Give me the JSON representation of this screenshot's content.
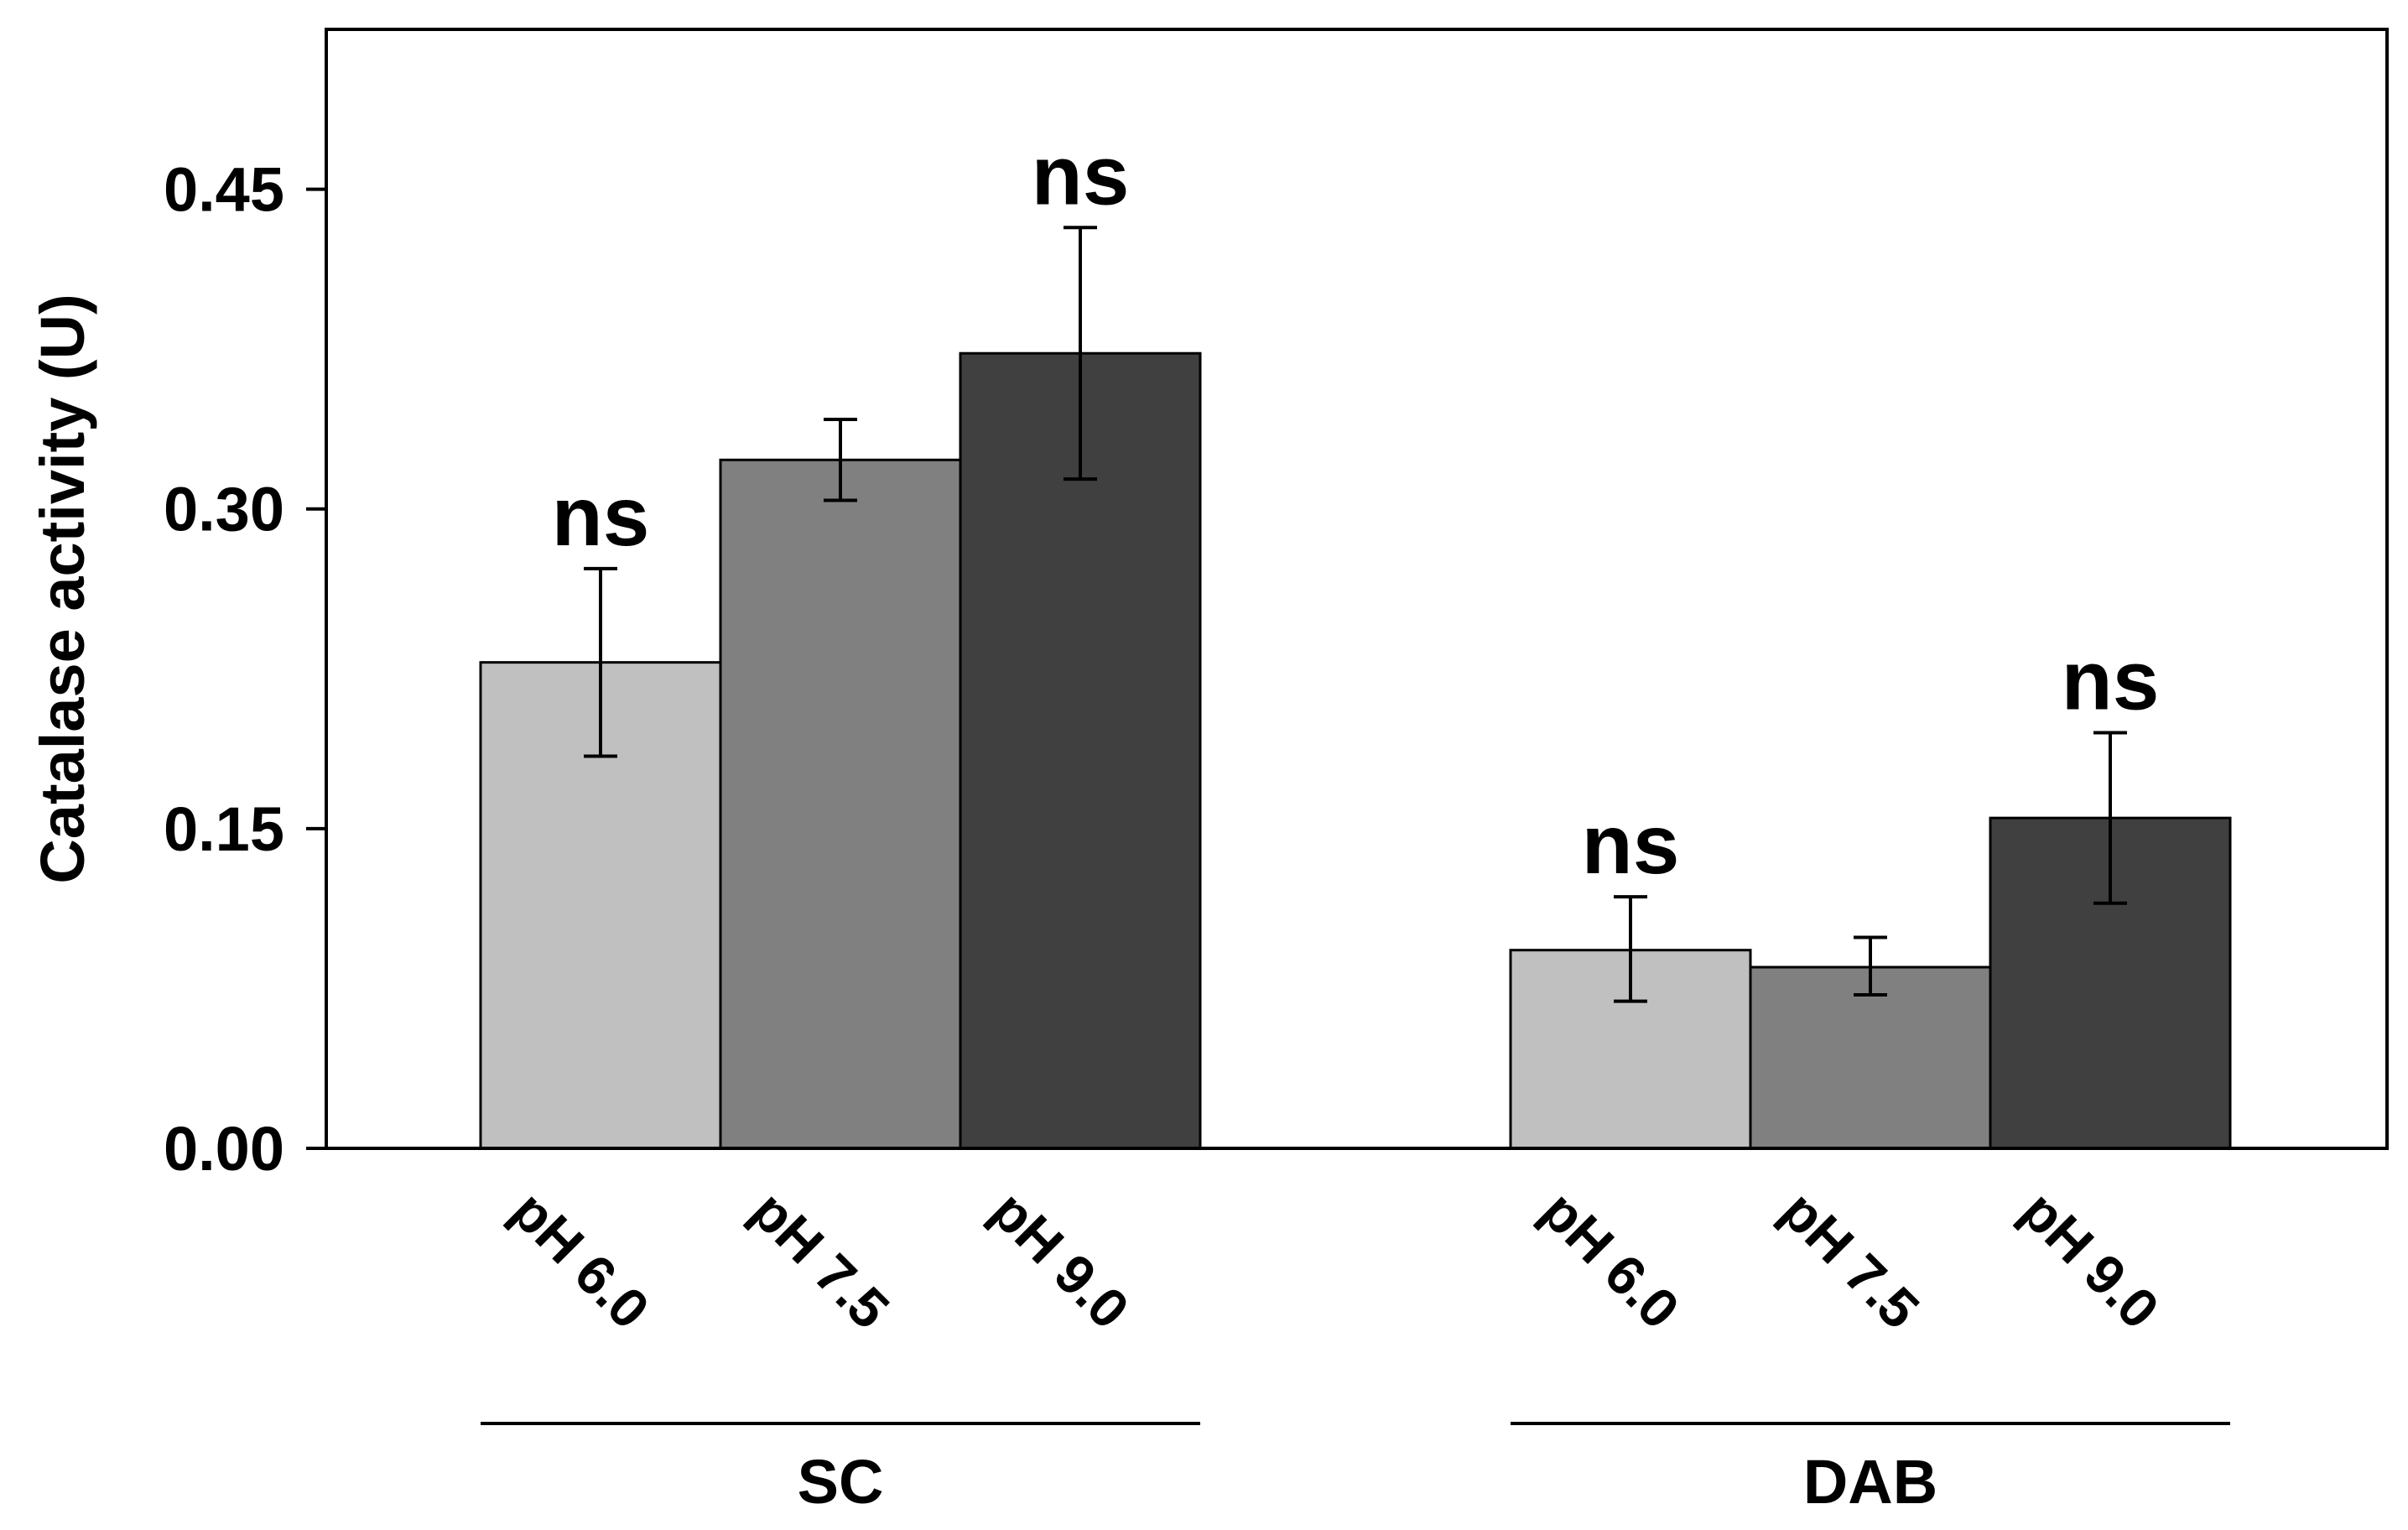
{
  "chart_data": {
    "type": "bar",
    "title": "",
    "ylabel": "Catalase activity (U)",
    "xlabel": "",
    "ylim": [
      0,
      0.525
    ],
    "yticks": [
      0.0,
      0.15,
      0.3,
      0.45
    ],
    "ytick_labels": [
      "0.00",
      "0.15",
      "0.30",
      "0.45"
    ],
    "grid": false,
    "groups": [
      {
        "name": "SC",
        "bars": [
          {
            "label": "pH 6.0",
            "value": 0.228,
            "err_low": 0.184,
            "err_high": 0.272,
            "color": "#c0c0c0",
            "annotation": "ns"
          },
          {
            "label": "pH 7.5",
            "value": 0.323,
            "err_low": 0.304,
            "err_high": 0.342,
            "color": "#808080",
            "annotation": ""
          },
          {
            "label": "pH 9.0",
            "value": 0.373,
            "err_low": 0.314,
            "err_high": 0.432,
            "color": "#404040",
            "annotation": "ns"
          }
        ]
      },
      {
        "name": "DAB",
        "bars": [
          {
            "label": "pH 6.0",
            "value": 0.093,
            "err_low": 0.069,
            "err_high": 0.118,
            "color": "#c0c0c0",
            "annotation": "ns"
          },
          {
            "label": "pH 7.5",
            "value": 0.085,
            "err_low": 0.072,
            "err_high": 0.099,
            "color": "#808080",
            "annotation": ""
          },
          {
            "label": "pH 9.0",
            "value": 0.155,
            "err_low": 0.115,
            "err_high": 0.195,
            "color": "#404040",
            "annotation": "ns"
          }
        ]
      }
    ]
  }
}
